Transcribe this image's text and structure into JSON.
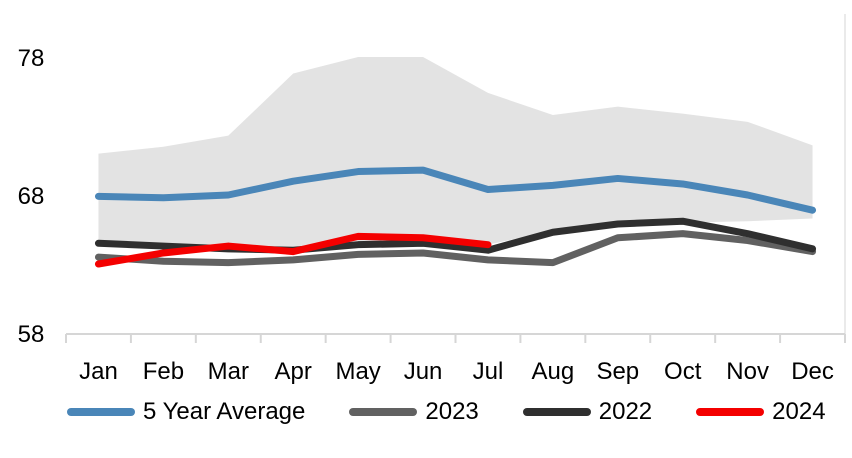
{
  "chart_data": {
    "type": "line",
    "title": "",
    "xlabel": "",
    "ylabel": "",
    "categories": [
      "Jan",
      "Feb",
      "Mar",
      "Apr",
      "May",
      "Jun",
      "Jul",
      "Aug",
      "Sep",
      "Oct",
      "Nov",
      "Dec"
    ],
    "y_ticks": [
      "58",
      "68",
      "78"
    ],
    "y_tick_values": [
      58,
      68,
      78
    ],
    "ylim": [
      58,
      80
    ],
    "grid": false,
    "legend_position": "bottom",
    "axis_color": "#d6d6d6",
    "text_color": "#000000",
    "range_band": {
      "name": "5-year-min-max-range",
      "color": "#e3e3e3",
      "top": [
        71.0,
        71.5,
        72.3,
        76.8,
        78.0,
        78.0,
        75.4,
        73.8,
        74.4,
        73.9,
        73.3,
        71.6
      ],
      "bottom": [
        64.6,
        64.3,
        64.2,
        64.1,
        64.6,
        64.6,
        64.4,
        65.4,
        66.0,
        66.0,
        66.1,
        66.3
      ]
    },
    "series": [
      {
        "name": "5 Year Average",
        "color": "#4a86b8",
        "values": [
          67.9,
          67.8,
          68.0,
          69.0,
          69.7,
          69.8,
          68.4,
          68.7,
          69.2,
          68.8,
          68.0,
          66.9
        ]
      },
      {
        "name": "2023",
        "color": "#616161",
        "values": [
          63.5,
          63.2,
          63.1,
          63.3,
          63.7,
          63.8,
          63.3,
          63.1,
          64.9,
          65.2,
          64.7,
          63.9
        ]
      },
      {
        "name": "2022",
        "color": "#2f2f2f",
        "values": [
          64.5,
          64.3,
          64.1,
          64.0,
          64.4,
          64.5,
          64.0,
          65.3,
          65.9,
          66.1,
          65.2,
          64.1
        ]
      },
      {
        "name": "2024",
        "color": "#f40000",
        "values": [
          63.0,
          63.8,
          64.3,
          63.9,
          65.0,
          64.9,
          64.4,
          null,
          null,
          null,
          null,
          null
        ]
      }
    ]
  }
}
